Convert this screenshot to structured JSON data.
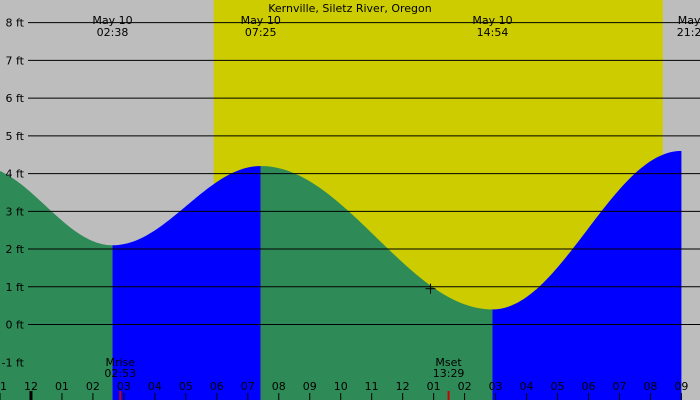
{
  "chart_data": {
    "type": "area",
    "title": "Kernville, Siletz River, Oregon",
    "colors": {
      "night": "#bdbdbd",
      "day": "#cccc00",
      "rising": "#0000ff",
      "falling": "#2e8b57",
      "text": "#000000",
      "moon_marker": "#cc0000"
    },
    "ylim": [
      -2,
      8.6
    ],
    "y_ticks": [
      {
        "value": 8,
        "label": "8 ft"
      },
      {
        "value": 7,
        "label": "7 ft"
      },
      {
        "value": 6,
        "label": "6 ft"
      },
      {
        "value": 5,
        "label": "5 ft"
      },
      {
        "value": 4,
        "label": "4 ft"
      },
      {
        "value": 3,
        "label": "3 ft"
      },
      {
        "value": 2,
        "label": "2 ft"
      },
      {
        "value": 1,
        "label": "1 ft"
      },
      {
        "value": 0,
        "label": "0 ft"
      },
      {
        "value": -1,
        "label": "-1 ft"
      }
    ],
    "xlim_hours": [
      -1,
      21.6
    ],
    "hour_ticks": [
      {
        "hour": -1,
        "label": "11"
      },
      {
        "hour": 0,
        "label": "12"
      },
      {
        "hour": 1,
        "label": "01"
      },
      {
        "hour": 2,
        "label": "02"
      },
      {
        "hour": 3,
        "label": "03"
      },
      {
        "hour": 4,
        "label": "04"
      },
      {
        "hour": 5,
        "label": "05"
      },
      {
        "hour": 6,
        "label": "06"
      },
      {
        "hour": 7,
        "label": "07"
      },
      {
        "hour": 8,
        "label": "08"
      },
      {
        "hour": 9,
        "label": "09"
      },
      {
        "hour": 10,
        "label": "10"
      },
      {
        "hour": 11,
        "label": "11"
      },
      {
        "hour": 12,
        "label": "12"
      },
      {
        "hour": 13,
        "label": "01"
      },
      {
        "hour": 14,
        "label": "02"
      },
      {
        "hour": 15,
        "label": "03"
      },
      {
        "hour": 16,
        "label": "04"
      },
      {
        "hour": 17,
        "label": "05"
      },
      {
        "hour": 18,
        "label": "06"
      },
      {
        "hour": 19,
        "label": "07"
      },
      {
        "hour": 20,
        "label": "08"
      },
      {
        "hour": 21,
        "label": "09"
      }
    ],
    "daylight": {
      "start": 5.9,
      "end": 20.4
    },
    "extremes": [
      {
        "hour": -1.7,
        "height": 4.2,
        "type": "high"
      },
      {
        "hour": 2.633,
        "height": 2.1,
        "type": "low"
      },
      {
        "hour": 7.417,
        "height": 4.2,
        "type": "high"
      },
      {
        "hour": 14.9,
        "height": 0.4,
        "type": "low"
      },
      {
        "hour": 21.0,
        "height": 4.6,
        "type": "high"
      }
    ],
    "top_labels": [
      {
        "hour": 2.633,
        "date": "May 10",
        "time": "02:38"
      },
      {
        "hour": 7.417,
        "date": "May 10",
        "time": "07:25"
      },
      {
        "hour": 14.9,
        "date": "May 10",
        "time": "14:54"
      },
      {
        "hour": 21.25,
        "date": "May",
        "time": "21:2"
      }
    ],
    "moon_events": [
      {
        "hour": 2.883,
        "label": "Mrise",
        "time": "02:53"
      },
      {
        "hour": 13.483,
        "label": "Mset",
        "time": "13:29"
      }
    ],
    "current_marker": {
      "hour": 12.9,
      "height": 0.95
    }
  }
}
